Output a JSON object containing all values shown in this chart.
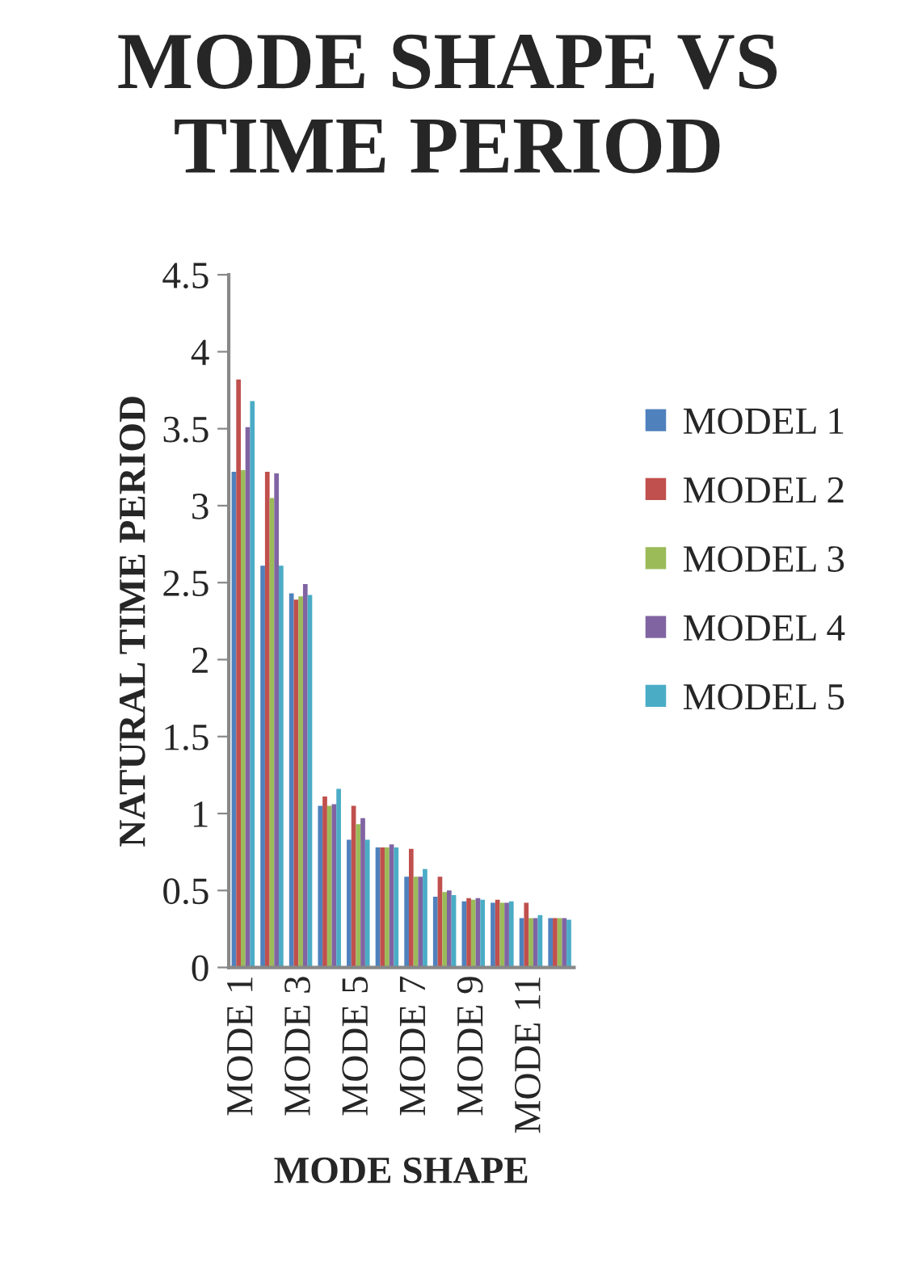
{
  "chart_data": {
    "type": "bar",
    "title": "MODE SHAPE VS TIME PERIOD",
    "xlabel": "MODE SHAPE",
    "ylabel": "NATURAL TIME PERIOD",
    "categories": [
      "MODE 1",
      null,
      "MODE 3",
      null,
      "MODE 5",
      null,
      "MODE 7",
      null,
      "MODE 9",
      null,
      "MODE 11",
      null
    ],
    "series": [
      {
        "name": "MODEL 1",
        "color": "#4f81bd",
        "values": [
          3.22,
          2.61,
          2.43,
          1.05,
          0.83,
          0.78,
          0.59,
          0.46,
          0.43,
          0.42,
          0.32,
          0.32
        ]
      },
      {
        "name": "MODEL 2",
        "color": "#c0504d",
        "values": [
          3.82,
          3.22,
          2.39,
          1.11,
          1.05,
          0.78,
          0.77,
          0.59,
          0.45,
          0.44,
          0.42,
          0.32
        ]
      },
      {
        "name": "MODEL 3",
        "color": "#9bbb59",
        "values": [
          3.23,
          3.05,
          2.41,
          1.05,
          0.93,
          0.78,
          0.59,
          0.49,
          0.44,
          0.42,
          0.32,
          0.32
        ]
      },
      {
        "name": "MODEL 4",
        "color": "#8064a2",
        "values": [
          3.51,
          3.21,
          2.49,
          1.06,
          0.97,
          0.8,
          0.59,
          0.5,
          0.45,
          0.42,
          0.32,
          0.32
        ]
      },
      {
        "name": "MODEL 5",
        "color": "#4bacc6",
        "values": [
          3.68,
          2.61,
          2.42,
          1.16,
          0.83,
          0.78,
          0.64,
          0.47,
          0.44,
          0.43,
          0.34,
          0.31
        ]
      }
    ],
    "ylim": [
      0,
      4.5
    ],
    "yticks": [
      0,
      0.5,
      1,
      1.5,
      2,
      2.5,
      3,
      3.5,
      4,
      4.5
    ],
    "grid": false,
    "legend": "right"
  }
}
